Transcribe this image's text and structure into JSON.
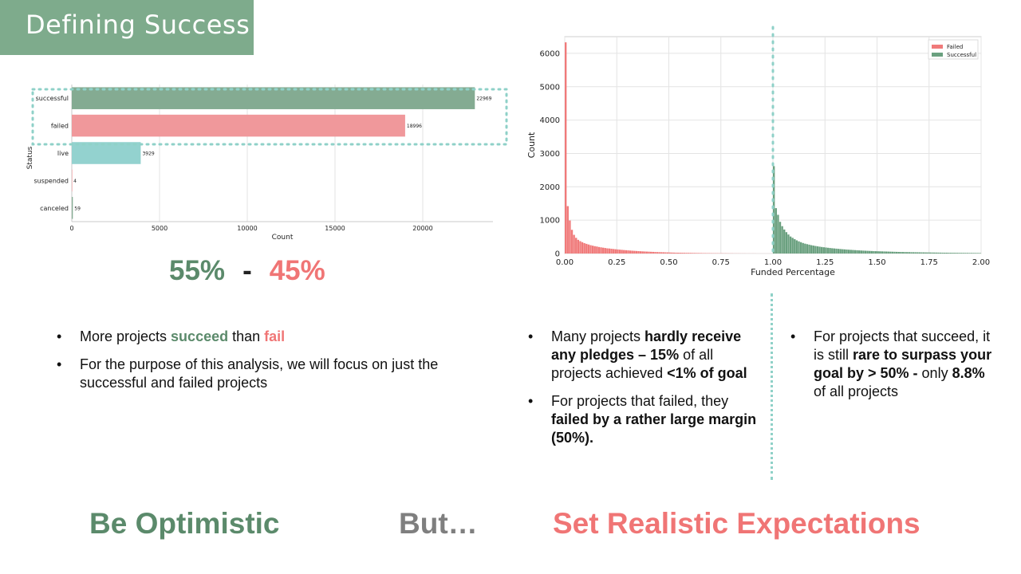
{
  "slide": {
    "title": "Defining Success",
    "ratio": {
      "success_pct": "55%",
      "separator": "-",
      "fail_pct": "45%"
    },
    "left_bullets": {
      "b1_pre": "More projects ",
      "b1_succeed": "succeed",
      "b1_mid": " than ",
      "b1_fail": "fail",
      "b2": "For the purpose of this analysis, we will focus on just the successful and failed projects"
    },
    "mid_bullets": {
      "b1_a": "Many projects ",
      "b1_b": "hardly receive any pledges – 15%",
      "b1_c": "  of all projects achieved  ",
      "b1_d": "<1%  of goal",
      "b2_a": "For projects that failed, they ",
      "b2_b": "failed by a rather large margin (50%)."
    },
    "right_bullets": {
      "b1_a": "For projects that succeed, it is still ",
      "b1_b": "rare to surpass your goal by > 50% -",
      "b1_c": " only ",
      "b1_d": "8.8%",
      "b1_e": " of all projects"
    },
    "footer": {
      "optimistic": "Be Optimistic",
      "but": "But…",
      "realistic": "Set Realistic Expectations"
    },
    "colors": {
      "title_bg": "#7eab8c",
      "success": "#5b8a6b",
      "fail": "#f07575",
      "but": "#7f7f7f",
      "dotted": "#8fd1c8"
    }
  },
  "chart_data": [
    {
      "type": "bar",
      "orientation": "horizontal",
      "categories": [
        "successful",
        "failed",
        "live",
        "suspended",
        "canceled"
      ],
      "values": [
        22969,
        18996,
        3929,
        4,
        59
      ],
      "colors": [
        "#84ab92",
        "#f0989b",
        "#93d2cf",
        "#f0989b",
        "#84ab92"
      ],
      "xlabel": "Count",
      "ylabel": "Status",
      "xticks": [
        0,
        5000,
        10000,
        15000,
        20000
      ],
      "xtick_labels": [
        "0",
        "5000",
        "10000",
        "15000",
        "20000"
      ],
      "xlim": [
        0,
        24000
      ],
      "grid": true
    },
    {
      "type": "histogram",
      "xlabel": "Funded Percentage",
      "ylabel": "Count",
      "xlim": [
        0,
        2.0
      ],
      "ylim": [
        0,
        6500
      ],
      "xticks": [
        "0.00",
        "0.25",
        "0.50",
        "0.75",
        "1.00",
        "1.25",
        "1.50",
        "1.75",
        "2.00"
      ],
      "yticks": [
        "0",
        "1000",
        "2000",
        "3000",
        "4000",
        "5000",
        "6000"
      ],
      "legend": {
        "placement": "top-right",
        "entries": [
          "Failed",
          "Successful"
        ]
      },
      "grid": true,
      "bin_width": 0.01,
      "series": [
        {
          "name": "Failed",
          "color": "#f07a7a",
          "bin_start": 0.0,
          "values": [
            6330,
            1420,
            990,
            710,
            560,
            470,
            410,
            370,
            340,
            310,
            290,
            270,
            250,
            235,
            220,
            210,
            195,
            185,
            175,
            165,
            155,
            150,
            142,
            135,
            128,
            122,
            116,
            110,
            104,
            99,
            94,
            89,
            84,
            80,
            76,
            72,
            68,
            64,
            61,
            58,
            55,
            52,
            49,
            46,
            43,
            41,
            39,
            37,
            35,
            33,
            31,
            29,
            27,
            25,
            24,
            23,
            22,
            21,
            20,
            19,
            18,
            17,
            16,
            15,
            14,
            13,
            12,
            11,
            10,
            10,
            9,
            9,
            8,
            8,
            7,
            7,
            6,
            6,
            5,
            5,
            5,
            4,
            4,
            4,
            3,
            3,
            3,
            2,
            2,
            2,
            2,
            2,
            1,
            1,
            1,
            1,
            1,
            1,
            1,
            1
          ]
        },
        {
          "name": "Successful",
          "color": "#6aa07f",
          "bin_start": 1.0,
          "values": [
            2620,
            1360,
            1160,
            950,
            820,
            720,
            640,
            570,
            510,
            470,
            430,
            395,
            365,
            340,
            315,
            295,
            280,
            265,
            250,
            238,
            226,
            215,
            205,
            196,
            188,
            180,
            172,
            165,
            158,
            152,
            146,
            140,
            134,
            129,
            124,
            119,
            114,
            110,
            106,
            102,
            98,
            94,
            90,
            87,
            84,
            81,
            78,
            75,
            72,
            70,
            68,
            66,
            64,
            62,
            60,
            58,
            56,
            54,
            52,
            50,
            48,
            47,
            46,
            44,
            43,
            42,
            40,
            39,
            38,
            37,
            36,
            35,
            34,
            33,
            32,
            31,
            30,
            29,
            28,
            27,
            26,
            25,
            24,
            24,
            23,
            22,
            22,
            21,
            20,
            20,
            19,
            19,
            18,
            18,
            17,
            17,
            16,
            16,
            15,
            15
          ]
        }
      ]
    }
  ]
}
